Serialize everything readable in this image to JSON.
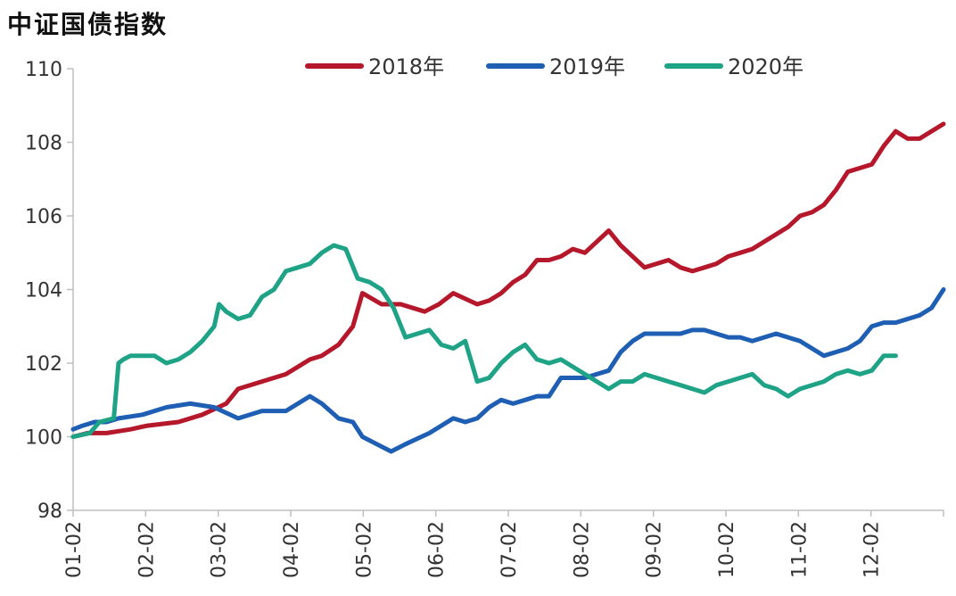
{
  "chart_data": {
    "type": "line",
    "title": "中证国债指数",
    "xlabel": "",
    "ylabel": "",
    "x_ticks": [
      "01-02",
      "02-02",
      "03-02",
      "04-02",
      "05-02",
      "06-02",
      "07-02",
      "08-02",
      "09-02",
      "10-02",
      "11-02",
      "12-02"
    ],
    "y_ticks": [
      98,
      100,
      102,
      104,
      106,
      108,
      110
    ],
    "ylim": [
      98,
      110
    ],
    "xlim": [
      1,
      365
    ],
    "legend_position": "top",
    "series": [
      {
        "name": "2018年",
        "color": "#b5172b",
        "x": [
          1,
          7,
          15,
          25,
          32,
          45,
          55,
          65,
          70,
          80,
          90,
          100,
          105,
          112,
          118,
          122,
          130,
          138,
          148,
          154,
          160,
          170,
          175,
          180,
          185,
          190,
          195,
          200,
          205,
          210,
          215,
          220,
          225,
          230,
          235,
          240,
          245,
          250,
          255,
          260,
          265,
          270,
          275,
          280,
          285,
          290,
          295,
          300,
          305,
          310,
          315,
          320,
          325,
          330,
          335,
          340,
          345,
          350,
          355,
          360,
          365
        ],
        "values": [
          100.0,
          100.1,
          100.1,
          100.2,
          100.3,
          100.4,
          100.6,
          100.9,
          101.3,
          101.5,
          101.7,
          102.1,
          102.2,
          102.5,
          103.0,
          103.9,
          103.6,
          103.6,
          103.4,
          103.6,
          103.9,
          103.6,
          103.7,
          103.9,
          104.2,
          104.4,
          104.8,
          104.8,
          104.9,
          105.1,
          105.0,
          105.3,
          105.6,
          105.2,
          104.9,
          104.6,
          104.7,
          104.8,
          104.6,
          104.5,
          104.6,
          104.7,
          104.9,
          105.0,
          105.1,
          105.3,
          105.5,
          105.7,
          106.0,
          106.1,
          106.3,
          106.7,
          107.2,
          107.3,
          107.4,
          107.9,
          108.3,
          108.1,
          108.1,
          108.3,
          108.5
        ]
      },
      {
        "name": "2019年",
        "color": "#1e5fb4",
        "x": [
          1,
          5,
          10,
          15,
          20,
          30,
          40,
          50,
          60,
          70,
          80,
          90,
          100,
          105,
          112,
          118,
          122,
          128,
          134,
          140,
          150,
          160,
          165,
          170,
          175,
          180,
          185,
          190,
          195,
          200,
          205,
          210,
          215,
          220,
          225,
          230,
          235,
          240,
          245,
          250,
          255,
          260,
          265,
          270,
          275,
          280,
          285,
          290,
          295,
          300,
          305,
          310,
          315,
          320,
          325,
          330,
          335,
          340,
          345,
          350,
          355,
          360,
          365
        ],
        "values": [
          100.2,
          100.3,
          100.4,
          100.4,
          100.5,
          100.6,
          100.8,
          100.9,
          100.8,
          100.5,
          100.7,
          100.7,
          101.1,
          100.9,
          100.5,
          100.4,
          100.0,
          99.8,
          99.6,
          99.8,
          100.1,
          100.5,
          100.4,
          100.5,
          100.8,
          101.0,
          100.9,
          101.0,
          101.1,
          101.1,
          101.6,
          101.6,
          101.6,
          101.7,
          101.8,
          102.3,
          102.6,
          102.8,
          102.8,
          102.8,
          102.8,
          102.9,
          102.9,
          102.8,
          102.7,
          102.7,
          102.6,
          102.7,
          102.8,
          102.7,
          102.6,
          102.4,
          102.2,
          102.3,
          102.4,
          102.6,
          103.0,
          103.1,
          103.1,
          103.2,
          103.3,
          103.5,
          104.0
        ]
      },
      {
        "name": "2020年",
        "color": "#1fa386",
        "x": [
          1,
          8,
          12,
          18,
          20,
          22,
          25,
          30,
          35,
          40,
          45,
          50,
          55,
          60,
          62,
          65,
          70,
          75,
          80,
          85,
          90,
          95,
          100,
          105,
          110,
          115,
          120,
          125,
          130,
          135,
          140,
          145,
          150,
          155,
          160,
          165,
          170,
          175,
          180,
          185,
          190,
          195,
          200,
          205,
          210,
          215,
          220,
          225,
          230,
          235,
          240,
          245,
          250,
          255,
          260,
          265,
          270,
          275,
          280,
          285,
          290,
          295,
          300,
          305,
          310,
          315,
          320,
          325,
          330,
          335,
          340,
          345
        ],
        "values": [
          100.0,
          100.1,
          100.4,
          100.5,
          102.0,
          102.1,
          102.2,
          102.2,
          102.2,
          102.0,
          102.1,
          102.3,
          102.6,
          103.0,
          103.6,
          103.4,
          103.2,
          103.3,
          103.8,
          104.0,
          104.5,
          104.6,
          104.7,
          105.0,
          105.2,
          105.1,
          104.3,
          104.2,
          104.0,
          103.5,
          102.7,
          102.8,
          102.9,
          102.5,
          102.4,
          102.6,
          101.5,
          101.6,
          102.0,
          102.3,
          102.5,
          102.1,
          102.0,
          102.1,
          101.9,
          101.7,
          101.5,
          101.3,
          101.5,
          101.5,
          101.7,
          101.6,
          101.5,
          101.4,
          101.3,
          101.2,
          101.4,
          101.5,
          101.6,
          101.7,
          101.4,
          101.3,
          101.1,
          101.3,
          101.4,
          101.5,
          101.7,
          101.8,
          101.7,
          101.8,
          102.2,
          102.2
        ]
      }
    ]
  }
}
